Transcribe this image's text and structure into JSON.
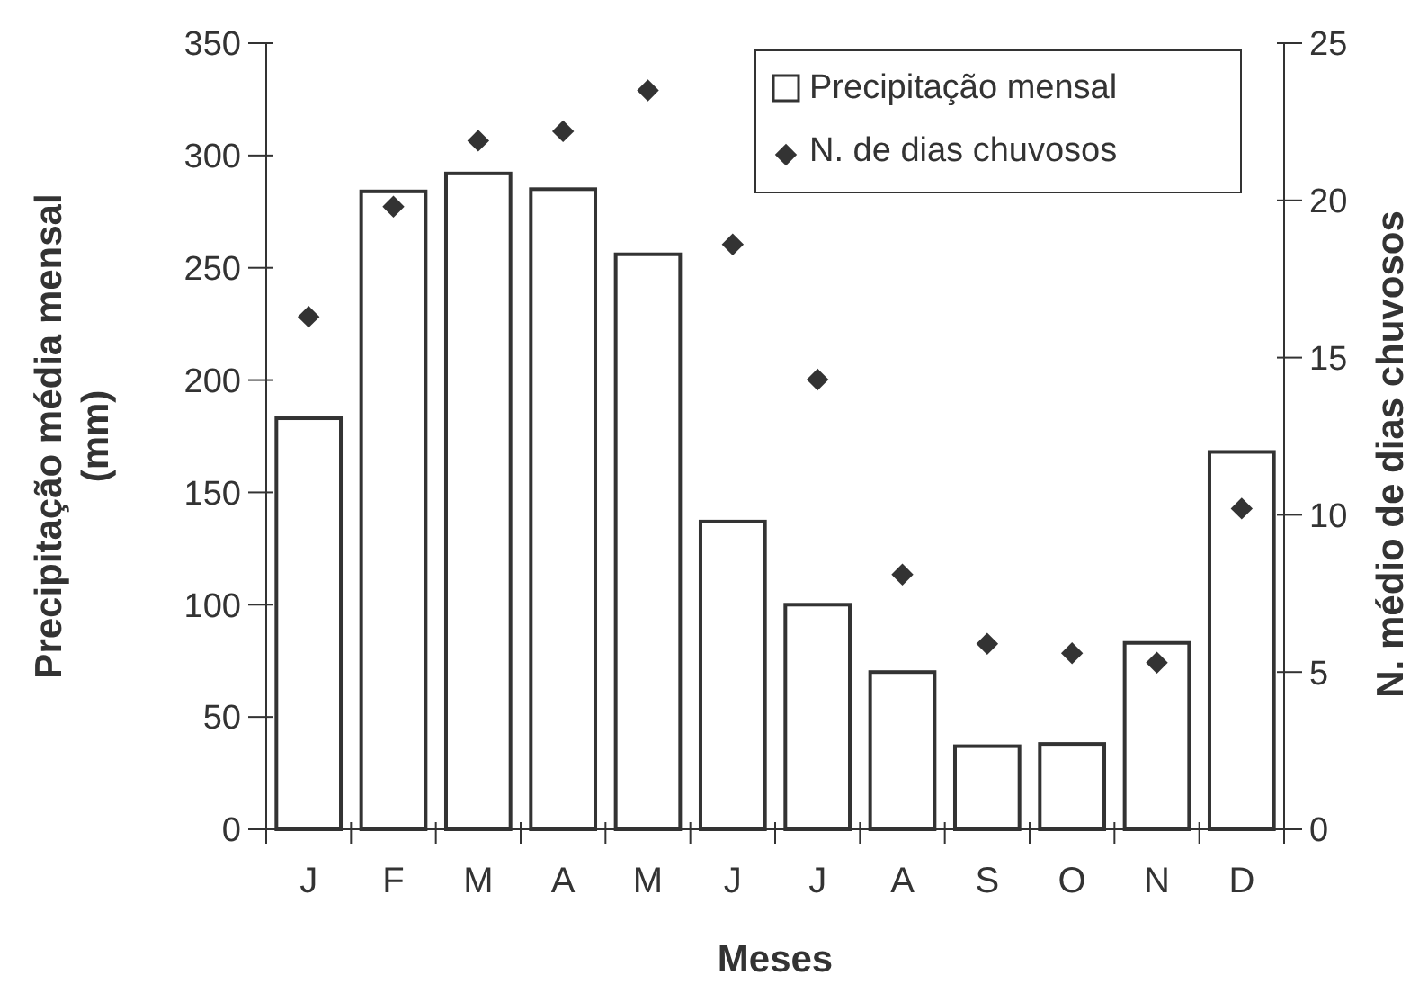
{
  "chart_data": {
    "type": "bar",
    "xlabel": "Meses",
    "ylabel": "Precipitação média mensal (mm)",
    "y2label": "N. médio de dias chuvosos",
    "categories": [
      "J",
      "F",
      "M",
      "A",
      "M",
      "J",
      "J",
      "A",
      "S",
      "O",
      "N",
      "D"
    ],
    "series": [
      {
        "name": "Precipitação mensal",
        "color": "#ffffff",
        "values": [
          183,
          284,
          292,
          285,
          256,
          137,
          100,
          70,
          37,
          38,
          83,
          168
        ]
      },
      {
        "name": "N. de dias chuvosos",
        "type": "scatter",
        "axis": "y2",
        "color": "#333333",
        "marker": "diamond",
        "values": [
          16.3,
          19.8,
          21.9,
          22.2,
          23.5,
          18.6,
          14.3,
          8.1,
          5.9,
          5.6,
          5.3,
          10.2
        ]
      }
    ],
    "ylim": [
      0,
      350
    ],
    "yticks": [
      0,
      50,
      100,
      150,
      200,
      250,
      300,
      350
    ],
    "y2lim": [
      0,
      25
    ],
    "y2ticks": [
      0,
      5,
      10,
      15,
      20,
      25
    ],
    "grid": false,
    "legend": "top right"
  }
}
